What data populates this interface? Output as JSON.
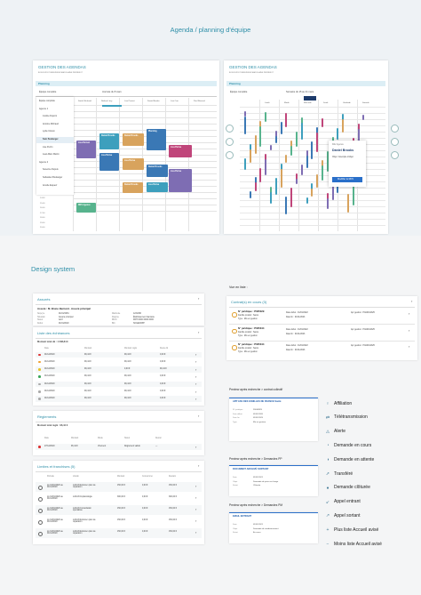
{
  "header": {
    "title": "Agenda / planning d'équipe"
  },
  "agenda_left": {
    "title": "GESTION DES AGENDAS",
    "breadcrumb": "BONJOUR ET BIENVENUE MARJOLAINE PERRENOT",
    "tab": "Planning",
    "filter": "Équipe complète",
    "period": "Journée du 8 mars",
    "team": [
      "Équipe complète",
      "Agence 1",
      "Justine Dupont",
      "Antoine Michaud",
      "Lydie Closon",
      "Sam Boulanger",
      "Lise Perrin",
      "Jean-Marc Martin",
      "Agence 2",
      "Séverine Dupuis",
      "Sébastien Boulanger",
      "Amélie Esquerr"
    ],
    "columns": [
      "Sarah Michaud",
      "Nathan Lévy",
      "Lisa Parisot",
      "Daniel Brooks",
      "Lisa Carr",
      "Paul Roussel"
    ],
    "hours": [
      "14:00",
      "15:00",
      "16:00",
      "17:00",
      "18:00",
      "19:00",
      "20:00"
    ],
    "events": [
      "Lisa Parisot",
      "Daniel Brooks",
      "Lisa Parise",
      "Daniel Brooks",
      "Lisa Parise",
      "Planning",
      "Daniel Brooks",
      "Lisa Parise",
      "Lisa Parise",
      "RDV Agence",
      "Daniel Brooks",
      "Lisa Parise"
    ]
  },
  "agenda_right": {
    "title": "GESTION DES AGENDAS",
    "breadcrumb": "BONJOUR ET BIENVENUE MARJOLAINE PERRENOT",
    "tab": "Planning",
    "filter": "Équipe complète",
    "period": "Semaine du 15 au 21 mars",
    "days": [
      "Lundi",
      "Mardi",
      "Mercredi",
      "Jeudi",
      "Vendredi",
      "Samedi"
    ],
    "popup": {
      "tag": "Rdv Agence",
      "name": "Daniel Brooks",
      "text": "Objet : Exemple d'objet",
      "button": "Modifier le RDV"
    }
  },
  "design": {
    "title": "Design system"
  },
  "assures": {
    "title": "Assurés",
    "subtitle": "Assuré : M. Bruno Bernard - Assuré principal",
    "left": [
      [
        "Né(e) le",
        "01/01/1954"
      ],
      [
        "Situation",
        "Assuré principal"
      ],
      [
        "Statut",
        "Actif"
      ],
      [
        "Début",
        "01/01/2020"
      ]
    ],
    "right": [
      [
        "Matricule",
        "1231456"
      ],
      [
        "Régime",
        "Établissement bancaire"
      ],
      [
        "IBAN",
        "FR76 0000 0000 0000"
      ],
      [
        "BIC",
        "SOGEFRPP"
      ]
    ]
  },
  "echeances": {
    "title": "Liste des échéances",
    "total": "Montant total dû : 1 008,84 €",
    "columns": [
      "Date",
      "Montant",
      "Montant réglé",
      "Reste dû"
    ],
    "rows": [
      [
        "01/12/2020",
        "99,44 €",
        "99,44 €",
        "0,00 €"
      ],
      [
        "01/12/2020",
        "99,44 €",
        "99,44 €",
        "0,00 €"
      ],
      [
        "01/12/2020",
        "99,44 €",
        "0,00 €",
        "99,44 €"
      ],
      [
        "01/12/2020",
        "99,44 €",
        "99,44 €",
        "0,00 €"
      ],
      [
        "01/12/2020",
        "99,44 €",
        "99,44 €",
        "0,00 €"
      ],
      [
        "01/12/2020",
        "99,44 €",
        "99,44 €",
        "0,00 €"
      ],
      [
        "01/12/2020",
        "99,44 €",
        "99,44 €",
        "0,00 €"
      ]
    ]
  },
  "reglements": {
    "title": "Règlements",
    "total": "Montant total réglé : 96,44 €",
    "columns": [
      "Date",
      "Montant",
      "Mode",
      "Statut",
      "Retour"
    ],
    "rows": [
      [
        "27/12/2020",
        "96,44 €",
        "Virement",
        "Règlement validé",
        "—"
      ]
    ]
  },
  "limites": {
    "title": "Limites et franchises (5)",
    "columns": [
      "Période",
      "Libellé",
      "Montant",
      "Consommé",
      "Restant"
    ],
    "rows": [
      [
        "du 01/01/2020 au 01/12/2020",
        "LAKAN Entretien plan de réparation",
        "150,00 €",
        "0,00 €",
        "150,00 €"
      ],
      [
        "du 01/01/2020 au 01/12/2020",
        "LAKAN Implantologie",
        "300,00 €",
        "0,00 €",
        "300,00 €"
      ],
      [
        "du 01/01/2020 au 01/12/2020",
        "LAKAN Consultation spécialiste",
        "150,00 €",
        "0,00 €",
        "150,00 €"
      ],
      [
        "du 01/01/2020 au 01/12/2020",
        "LAKAN Entretien plan de réparation",
        "150,00 €",
        "0,00 €",
        "150,00 €"
      ],
      [
        "du 01/01/2020 au 01/12/2020",
        "LAKAN Entretien plan de réparation",
        "150,00 €",
        "0,00 €",
        "150,00 €"
      ]
    ]
  },
  "liste": {
    "label": "Vue en liste :",
    "title": "Contrat(s) en cours (3)",
    "rows": [
      {
        "id": "N° juridique : P025029",
        "a": "Famille produit : Santé",
        "b": "Type : Mis en gestion",
        "c": "Date début : 01/01/2022",
        "d": "Date fin : 01/01/2023",
        "e": "Apr gestion : P0A0012325"
      },
      {
        "id": "N° juridique : P025344",
        "a": "Famille produit : Santé",
        "b": "Type : Mis en gestion",
        "c": "Date début : 01/01/2022",
        "d": "Date fin : 01/01/2023",
        "e": "Apr gestion : P0A0012325"
      },
      {
        "id": "N° juridique : P025344",
        "a": "Famille produit : Santé",
        "b": "Type : Mis en gestion",
        "c": "Date début : 01/01/2022",
        "d": "Date fin : 01/01/2023",
        "e": "Apr gestion : P0A0012325"
      }
    ]
  },
  "previews": [
    {
      "label": "Preview après recherche > contrat collectif",
      "title": "APP ASS DES FAMILLES DE FRANCE Santé",
      "fields": [
        [
          "N° juridique",
          "P0048925"
        ],
        [
          "Date début",
          "01/01/2020"
        ],
        [
          "Date fin",
          "01/01/2025"
        ],
        [
          "Type",
          "Mis en gestion"
        ]
      ]
    },
    {
      "label": "Preview après recherche > Demandes PP",
      "title": "DOCUMENT ARCHIVÉ SORTANT",
      "fields": [
        [
          "Date",
          "01/01/2021"
        ],
        [
          "Objet",
          "Demande de prise en charge"
        ],
        [
          "Statut",
          "Clôturée"
        ]
      ]
    },
    {
      "label": "Preview après recherche > Demandes PM",
      "title": "EMAIL ENTRANT",
      "fields": [
        [
          "Date",
          "01/01/2021"
        ],
        [
          "Objet",
          "Demande de remboursement"
        ],
        [
          "Statut",
          "En cours"
        ]
      ]
    }
  ],
  "legend": [
    "Affiliation",
    "Télétransmission",
    "Alerte",
    "Demande en cours",
    "Demande en attente",
    "Transféré",
    "Demande clôturée",
    "Appel entrant",
    "Appel sortant",
    "Plus liste Accueil avisé",
    "Moins liste Accueil avisé"
  ]
}
